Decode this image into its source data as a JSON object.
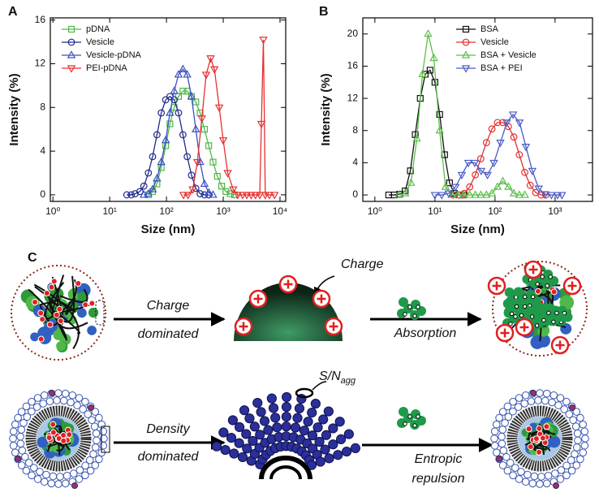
{
  "chart_data": [
    {
      "type": "line",
      "label": "A",
      "xlabel": "Size (nm)",
      "ylabel": "Intensity (%)",
      "xscale": "log",
      "xlim": [
        0.9,
        12600
      ],
      "ylim": [
        -0.6,
        16.2
      ],
      "xticks": [
        {
          "value": 1,
          "label": "10⁰"
        },
        {
          "value": 10,
          "label": "10¹"
        },
        {
          "value": 100,
          "label": "10²"
        },
        {
          "value": 1000,
          "label": "10³"
        },
        {
          "value": 10000,
          "label": "10⁴"
        }
      ],
      "yticks": [
        0,
        4,
        8,
        12,
        16
      ],
      "legend": "upper left",
      "series": [
        {
          "name": "pDNA",
          "color": "#4fb848",
          "marker": "square",
          "x": [
            48,
            57,
            68,
            81,
            97,
            115,
            137,
            163,
            195,
            232,
            276,
            329,
            392,
            467,
            556,
            662,
            788,
            938,
            1117,
            1330,
            1583
          ],
          "values": [
            0,
            0.3,
            1,
            2.5,
            4.5,
            6.5,
            8,
            9,
            9.5,
            9.5,
            9,
            8.5,
            7.5,
            6,
            4.5,
            3,
            1.7,
            0.8,
            0.3,
            0.1,
            0
          ]
        },
        {
          "name": "Vesicle",
          "color": "#1f2a8a",
          "marker": "circle",
          "x": [
            20,
            24,
            28,
            34,
            40,
            48,
            57,
            68,
            81,
            97,
            115,
            137,
            163,
            195,
            232,
            276,
            329,
            392,
            467,
            556
          ],
          "values": [
            0,
            0,
            0.1,
            0.3,
            0.8,
            2,
            3.5,
            5.5,
            7.5,
            8.7,
            9,
            8.7,
            7.5,
            5.5,
            3.5,
            1.8,
            0.6,
            0.1,
            0,
            0
          ]
        },
        {
          "name": "Vesicle-pDNA",
          "color": "#3b4fc2",
          "marker": "triangle",
          "x": [
            40,
            48,
            57,
            68,
            81,
            97,
            115,
            137,
            163,
            195,
            232,
            276,
            329,
            392,
            467,
            556,
            662
          ],
          "values": [
            0,
            0.1,
            0.5,
            1.5,
            3,
            5,
            7.5,
            9.5,
            11,
            11.5,
            11,
            9,
            6,
            3,
            1,
            0.2,
            0
          ]
        },
        {
          "name": "PEI-pDNA",
          "color": "#e53030",
          "marker": "triangle-down",
          "x": [
            200,
            240,
            290,
            350,
            420,
            500,
            600,
            700,
            850,
            1000,
            1200,
            1500,
            1800,
            2200,
            2600,
            3100,
            3700,
            4400,
            4700,
            5100,
            5500,
            6500,
            8000
          ],
          "values": [
            0,
            0,
            0.5,
            3,
            7,
            11,
            12.5,
            11.5,
            8,
            5,
            2,
            0.5,
            0,
            0,
            0,
            0,
            0,
            0,
            6.5,
            14.2,
            0,
            0,
            0
          ]
        }
      ]
    },
    {
      "type": "line",
      "label": "B",
      "xlabel": "Size (nm)",
      "ylabel": "Intensity (%)",
      "xscale": "log",
      "xlim": [
        0.63,
        4200
      ],
      "ylim": [
        -0.8,
        22
      ],
      "xticks": [
        {
          "value": 1,
          "label": "10⁰"
        },
        {
          "value": 10,
          "label": "10¹"
        },
        {
          "value": 100,
          "label": "10²"
        },
        {
          "value": 1000,
          "label": "10³"
        }
      ],
      "yticks": [
        0,
        4,
        8,
        12,
        16,
        20
      ],
      "legend": "upper right",
      "series": [
        {
          "name": "BSA",
          "color": "#111111",
          "marker": "square",
          "x": [
            1.7,
            2.1,
            2.6,
            3.2,
            3.9,
            4.7,
            5.7,
            6.9,
            8.3,
            10,
            12,
            14.5,
            17.5,
            21,
            25,
            30
          ],
          "values": [
            0,
            0,
            0.1,
            0.5,
            3,
            7.5,
            12,
            15,
            15.5,
            14,
            10,
            5,
            1.5,
            0.2,
            0,
            0
          ]
        },
        {
          "name": "Vesicle",
          "color": "#e53030",
          "marker": "circle",
          "x": [
            20,
            25,
            31,
            38,
            47,
            58,
            72,
            89,
            110,
            135,
            167,
            206,
            254,
            313,
            386,
            476,
            587,
            700
          ],
          "values": [
            0,
            0,
            0.2,
            1,
            2.5,
            4.5,
            6.5,
            8.2,
            9,
            9,
            8.5,
            7.2,
            5,
            2.8,
            1.2,
            0.3,
            0,
            0
          ]
        },
        {
          "name": "BSA + Vesicle",
          "color": "#5cbf4a",
          "marker": "triangle",
          "x": [
            2.5,
            3.2,
            4,
            5,
            6.2,
            7.7,
            9.6,
            12,
            15,
            19,
            24,
            30,
            38,
            47,
            58,
            72,
            89,
            110,
            135,
            167,
            206,
            254,
            313
          ],
          "values": [
            0,
            0.2,
            1.5,
            7,
            15,
            20,
            17,
            8,
            1,
            0,
            0,
            0,
            0,
            0,
            0,
            0,
            0.2,
            1,
            1.7,
            1,
            0.2,
            0,
            0
          ]
        },
        {
          "name": "BSA + PEI",
          "color": "#4a5bc4",
          "marker": "triangle-down",
          "x": [
            10,
            13,
            17,
            22,
            28,
            36,
            46,
            59,
            75,
            96,
            123,
            157,
            200,
            256,
            327,
            418,
            534,
            683,
            870,
            1100,
            1300
          ],
          "values": [
            0,
            0,
            0.2,
            1,
            2.5,
            4,
            4,
            3,
            2.5,
            4,
            6.5,
            9,
            10,
            9,
            6,
            3,
            0.8,
            0.1,
            0,
            0,
            0
          ]
        }
      ]
    }
  ],
  "diagram": {
    "label": "C",
    "charge_arrow": [
      "Charge",
      "dominated"
    ],
    "charge_callout": "Charge",
    "absorption_arrow": [
      "Absorption"
    ],
    "density_arrow": [
      "Density",
      "dominated"
    ],
    "sn_callout": {
      "main": "S/N",
      "sub": "agg"
    },
    "entropic_arrow": [
      "Entropic",
      "repulsion"
    ]
  }
}
